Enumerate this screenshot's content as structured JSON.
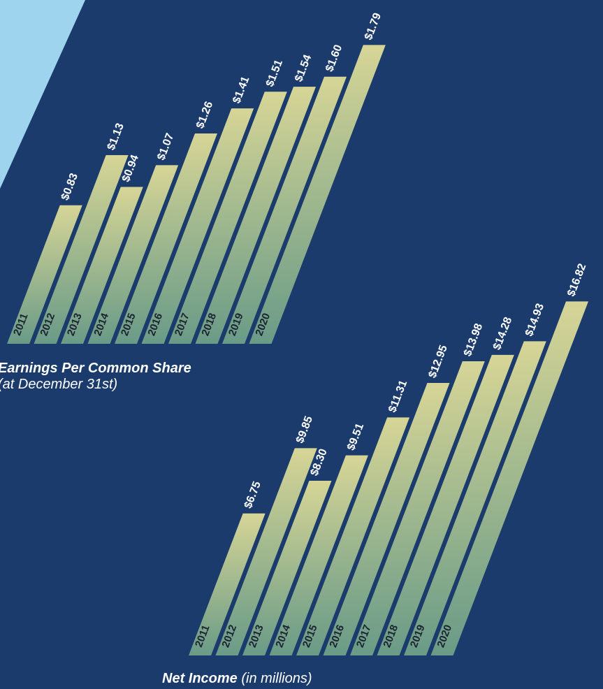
{
  "colors": {
    "background": "#1a3b6c",
    "accent_panel": "#9fd4ee",
    "bar_top": "#d6d596",
    "bar_bottom": "#6a9b87",
    "text": "#ffffff",
    "year_text": "#1c2433"
  },
  "chart_data": [
    {
      "type": "bar",
      "title": "Earnings Per Common Share",
      "subtitle": "(at December 31st)",
      "categories": [
        "2011",
        "2012",
        "2013",
        "2014",
        "2015",
        "2016",
        "2017",
        "2018",
        "2019",
        "2020"
      ],
      "values": [
        0.83,
        1.13,
        0.94,
        1.07,
        1.26,
        1.41,
        1.51,
        1.54,
        1.6,
        1.79
      ],
      "value_labels": [
        "$0.83",
        "$1.13",
        "$0.94",
        "$1.07",
        "$1.26",
        "$1.41",
        "$1.51",
        "$1.54",
        "$1.60",
        "$1.79"
      ],
      "ylim": [
        0,
        1.8
      ]
    },
    {
      "type": "bar",
      "title": "Net Income",
      "subtitle": "(in millions)",
      "categories": [
        "2011",
        "2012",
        "2013",
        "2014",
        "2015",
        "2016",
        "2017",
        "2018",
        "2019",
        "2020"
      ],
      "values": [
        6.75,
        9.85,
        8.3,
        9.51,
        11.31,
        12.95,
        13.98,
        14.28,
        14.93,
        16.82
      ],
      "value_labels": [
        "$6.75",
        "$9.85",
        "$8.30",
        "$9.51",
        "$11.31",
        "$12.95",
        "$13.98",
        "$14.28",
        "$14.93",
        "$16.82"
      ],
      "ylim": [
        0,
        17
      ]
    }
  ]
}
